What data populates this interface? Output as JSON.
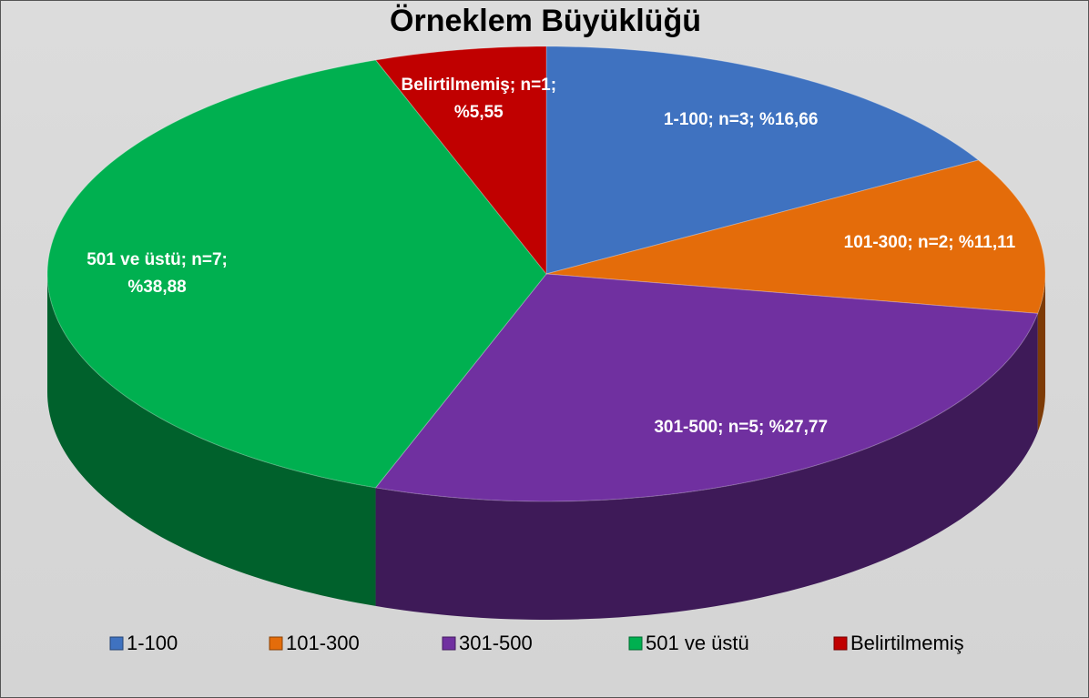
{
  "chart_data": {
    "type": "pie",
    "title": "Örneklem Büyüklüğü",
    "categories": [
      "1-100",
      "101-300",
      "301-500",
      "501 ve üstü",
      "Belirtilmemiş"
    ],
    "values": [
      16.66,
      11.11,
      27.77,
      38.88,
      5.55
    ],
    "value_labels": [
      "1-100; n=3; %16,66",
      "101-300; n=2; %11,11",
      "301-500; n=5; %27,77",
      "501 ve üstü; n=7; %38,88",
      "Belirtilmemiş; n=1; %5,55"
    ],
    "colors": [
      "#3f72c0",
      "#e46c0a",
      "#7030a0",
      "#00b050",
      "#c00000"
    ],
    "legend": "bottom"
  }
}
